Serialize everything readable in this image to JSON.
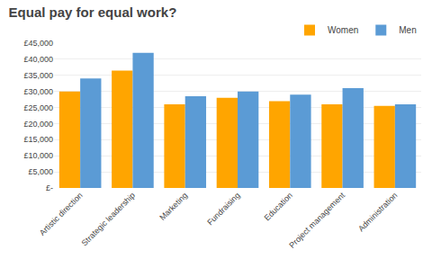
{
  "chart_data": {
    "type": "bar",
    "title": "Equal pay for equal work?",
    "categories": [
      "Artistic direction",
      "Strategic leadership",
      "Marketing",
      "Fundraising",
      "Education",
      "Project management",
      "Administration"
    ],
    "series": [
      {
        "name": "Women",
        "color": "#FFA500",
        "values": [
          30000,
          36500,
          26000,
          28000,
          27000,
          26000,
          25500
        ]
      },
      {
        "name": "Men",
        "color": "#5B9BD5",
        "values": [
          34000,
          42000,
          28500,
          30000,
          29000,
          31000,
          26000
        ]
      }
    ],
    "ylim": [
      0,
      45000
    ],
    "yticks": [
      {
        "value": 0,
        "label": "£-"
      },
      {
        "value": 5000,
        "label": "£5,000"
      },
      {
        "value": 10000,
        "label": "£10,000"
      },
      {
        "value": 15000,
        "label": "£15,000"
      },
      {
        "value": 20000,
        "label": "£20,000"
      },
      {
        "value": 25000,
        "label": "£25,000"
      },
      {
        "value": 30000,
        "label": "£30,000"
      },
      {
        "value": 35000,
        "label": "£35,000"
      },
      {
        "value": 40000,
        "label": "£40,000"
      },
      {
        "value": 45000,
        "label": "£45,000"
      }
    ],
    "grid": true,
    "legend": "upper right"
  }
}
